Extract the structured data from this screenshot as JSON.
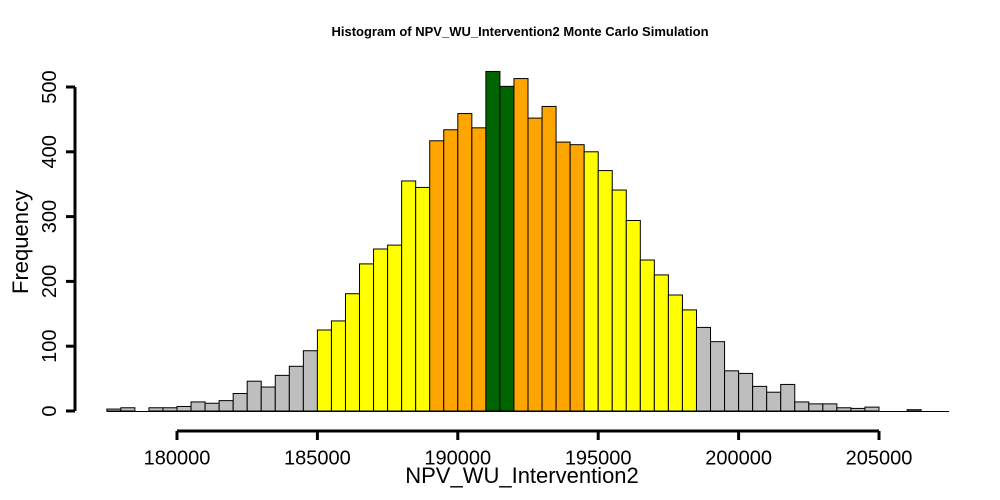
{
  "chart_data": {
    "type": "bar",
    "title": "Histogram of  NPV_WU_Intervention2  Monte Carlo Simulation",
    "xlabel": "NPV_WU_Intervention2",
    "ylabel": "Frequency",
    "xlim": [
      177500,
      207000
    ],
    "ylim": [
      0,
      530
    ],
    "bin_width": 500,
    "x_ticks": [
      180000,
      185000,
      190000,
      195000,
      200000,
      205000
    ],
    "y_ticks": [
      0,
      100,
      200,
      300,
      400,
      500
    ],
    "x_tick_labels": [
      "180000",
      "185000",
      "190000",
      "195000",
      "200000",
      "205000"
    ],
    "y_tick_labels": [
      "0",
      "100",
      "200",
      "300",
      "400",
      "500"
    ],
    "colors": {
      "grey": "#bebebe",
      "yellow": "#ffff00",
      "orange": "#ffa500",
      "green": "#006400"
    },
    "bins": [
      {
        "x0": 177500,
        "x1": 178000,
        "count": 3,
        "color": "grey"
      },
      {
        "x0": 178000,
        "x1": 178500,
        "count": 5,
        "color": "grey"
      },
      {
        "x0": 178500,
        "x1": 179000,
        "count": 0,
        "color": "grey"
      },
      {
        "x0": 179000,
        "x1": 179500,
        "count": 5,
        "color": "grey"
      },
      {
        "x0": 179500,
        "x1": 180000,
        "count": 5,
        "color": "grey"
      },
      {
        "x0": 180000,
        "x1": 180500,
        "count": 7,
        "color": "grey"
      },
      {
        "x0": 180500,
        "x1": 181000,
        "count": 14,
        "color": "grey"
      },
      {
        "x0": 181000,
        "x1": 181500,
        "count": 12,
        "color": "grey"
      },
      {
        "x0": 181500,
        "x1": 182000,
        "count": 16,
        "color": "grey"
      },
      {
        "x0": 182000,
        "x1": 182500,
        "count": 27,
        "color": "grey"
      },
      {
        "x0": 182500,
        "x1": 183000,
        "count": 46,
        "color": "grey"
      },
      {
        "x0": 183000,
        "x1": 183500,
        "count": 37,
        "color": "grey"
      },
      {
        "x0": 183500,
        "x1": 184000,
        "count": 55,
        "color": "grey"
      },
      {
        "x0": 184000,
        "x1": 184500,
        "count": 69,
        "color": "grey"
      },
      {
        "x0": 184500,
        "x1": 185000,
        "count": 93,
        "color": "grey"
      },
      {
        "x0": 185000,
        "x1": 185500,
        "count": 125,
        "color": "yellow"
      },
      {
        "x0": 185500,
        "x1": 186000,
        "count": 139,
        "color": "yellow"
      },
      {
        "x0": 186000,
        "x1": 186500,
        "count": 181,
        "color": "yellow"
      },
      {
        "x0": 186500,
        "x1": 187000,
        "count": 227,
        "color": "yellow"
      },
      {
        "x0": 187000,
        "x1": 187500,
        "count": 250,
        "color": "yellow"
      },
      {
        "x0": 187500,
        "x1": 188000,
        "count": 256,
        "color": "yellow"
      },
      {
        "x0": 188000,
        "x1": 188500,
        "count": 355,
        "color": "yellow"
      },
      {
        "x0": 188500,
        "x1": 189000,
        "count": 345,
        "color": "yellow"
      },
      {
        "x0": 189000,
        "x1": 189500,
        "count": 417,
        "color": "orange"
      },
      {
        "x0": 189500,
        "x1": 190000,
        "count": 434,
        "color": "orange"
      },
      {
        "x0": 190000,
        "x1": 190500,
        "count": 459,
        "color": "orange"
      },
      {
        "x0": 190500,
        "x1": 191000,
        "count": 437,
        "color": "orange"
      },
      {
        "x0": 191000,
        "x1": 191500,
        "count": 524,
        "color": "green"
      },
      {
        "x0": 191500,
        "x1": 192000,
        "count": 501,
        "color": "green"
      },
      {
        "x0": 192000,
        "x1": 192500,
        "count": 513,
        "color": "orange"
      },
      {
        "x0": 192500,
        "x1": 193000,
        "count": 452,
        "color": "orange"
      },
      {
        "x0": 193000,
        "x1": 193500,
        "count": 470,
        "color": "orange"
      },
      {
        "x0": 193500,
        "x1": 194000,
        "count": 415,
        "color": "orange"
      },
      {
        "x0": 194000,
        "x1": 194500,
        "count": 411,
        "color": "orange"
      },
      {
        "x0": 194500,
        "x1": 195000,
        "count": 400,
        "color": "yellow"
      },
      {
        "x0": 195000,
        "x1": 195500,
        "count": 371,
        "color": "yellow"
      },
      {
        "x0": 195500,
        "x1": 196000,
        "count": 341,
        "color": "yellow"
      },
      {
        "x0": 196000,
        "x1": 196500,
        "count": 294,
        "color": "yellow"
      },
      {
        "x0": 196500,
        "x1": 197000,
        "count": 233,
        "color": "yellow"
      },
      {
        "x0": 197000,
        "x1": 197500,
        "count": 210,
        "color": "yellow"
      },
      {
        "x0": 197500,
        "x1": 198000,
        "count": 179,
        "color": "yellow"
      },
      {
        "x0": 198000,
        "x1": 198500,
        "count": 156,
        "color": "yellow"
      },
      {
        "x0": 198500,
        "x1": 199000,
        "count": 129,
        "color": "grey"
      },
      {
        "x0": 199000,
        "x1": 199500,
        "count": 107,
        "color": "grey"
      },
      {
        "x0": 199500,
        "x1": 200000,
        "count": 62,
        "color": "grey"
      },
      {
        "x0": 200000,
        "x1": 200500,
        "count": 58,
        "color": "grey"
      },
      {
        "x0": 200500,
        "x1": 201000,
        "count": 38,
        "color": "grey"
      },
      {
        "x0": 201000,
        "x1": 201500,
        "count": 29,
        "color": "grey"
      },
      {
        "x0": 201500,
        "x1": 202000,
        "count": 41,
        "color": "grey"
      },
      {
        "x0": 202000,
        "x1": 202500,
        "count": 14,
        "color": "grey"
      },
      {
        "x0": 202500,
        "x1": 203000,
        "count": 11,
        "color": "grey"
      },
      {
        "x0": 203000,
        "x1": 203500,
        "count": 11,
        "color": "grey"
      },
      {
        "x0": 203500,
        "x1": 204000,
        "count": 5,
        "color": "grey"
      },
      {
        "x0": 204000,
        "x1": 204500,
        "count": 4,
        "color": "grey"
      },
      {
        "x0": 204500,
        "x1": 205000,
        "count": 6,
        "color": "grey"
      },
      {
        "x0": 205000,
        "x1": 205500,
        "count": 0,
        "color": "grey"
      },
      {
        "x0": 205500,
        "x1": 206000,
        "count": 0,
        "color": "grey"
      },
      {
        "x0": 206000,
        "x1": 206500,
        "count": 2,
        "color": "grey"
      }
    ]
  }
}
